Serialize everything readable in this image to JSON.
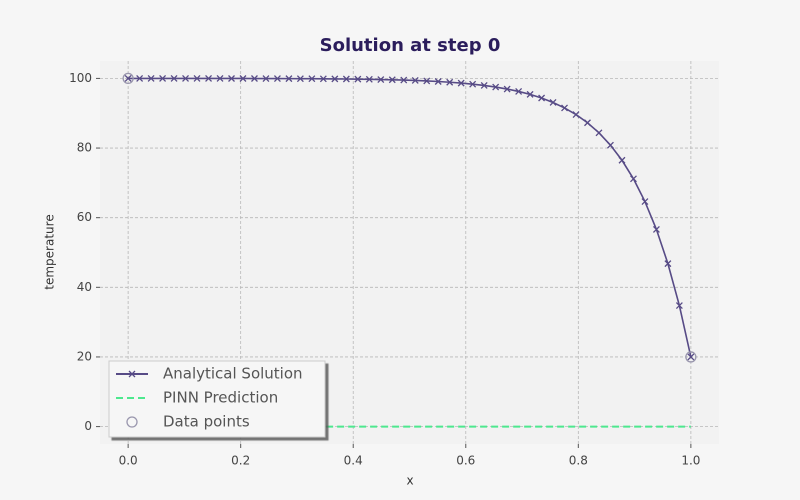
{
  "chart_data": {
    "type": "line",
    "title": "Solution at step 0",
    "x_label": "x",
    "y_label": "temperature",
    "xlim": [
      -0.05,
      1.05
    ],
    "ylim": [
      -5,
      105
    ],
    "xticks": [
      {
        "value": 0,
        "label": "0.0"
      },
      0.2,
      0.4,
      0.6,
      0.8,
      {
        "value": 1,
        "label": "1.0"
      }
    ],
    "yticks": [
      0,
      20,
      40,
      60,
      80,
      100
    ],
    "grid": true,
    "legend": "lower left",
    "series": [
      {
        "name": "Analytical Solution",
        "color": "#574b86",
        "linestyle": "solid",
        "marker": "x",
        "x": [
          0,
          0.0204,
          0.0408,
          0.0612,
          0.0816,
          0.102,
          0.1224,
          0.1429,
          0.1633,
          0.1837,
          0.2041,
          0.2245,
          0.2449,
          0.2653,
          0.2857,
          0.3061,
          0.3265,
          0.3469,
          0.3673,
          0.3878,
          0.4082,
          0.4286,
          0.449,
          0.4694,
          0.4898,
          0.5102,
          0.5306,
          0.551,
          0.5714,
          0.5918,
          0.6122,
          0.6327,
          0.6531,
          0.6735,
          0.6939,
          0.7143,
          0.7347,
          0.7551,
          0.7755,
          0.7959,
          0.8163,
          0.8367,
          0.8571,
          0.8776,
          0.898,
          0.9184,
          0.9388,
          0.9592,
          0.9796,
          1
        ],
        "values": [
          100,
          100,
          100,
          100,
          99.99,
          99.99,
          99.99,
          99.99,
          99.99,
          99.98,
          99.98,
          99.97,
          99.96,
          99.95,
          99.94,
          99.93,
          99.91,
          99.89,
          99.86,
          99.83,
          99.79,
          99.74,
          99.68,
          99.61,
          99.52,
          99.41,
          99.27,
          99.11,
          98.9,
          98.65,
          98.35,
          97.97,
          97.51,
          96.95,
          96.26,
          95.41,
          94.37,
          93.09,
          91.53,
          89.61,
          87.26,
          84.37,
          80.83,
          76.49,
          71.17,
          64.64,
          56.63,
          46.81,
          34.77,
          20
        ]
      },
      {
        "name": "PINN Prediction",
        "color": "#4de88e",
        "linestyle": "dashed",
        "marker": "none",
        "x": [
          0,
          1
        ],
        "values": [
          0,
          0
        ]
      },
      {
        "name": "Data points",
        "color": "#9a97ae",
        "linestyle": "none",
        "marker": "o",
        "x": [
          0,
          1
        ],
        "values": [
          100,
          20
        ]
      }
    ]
  }
}
